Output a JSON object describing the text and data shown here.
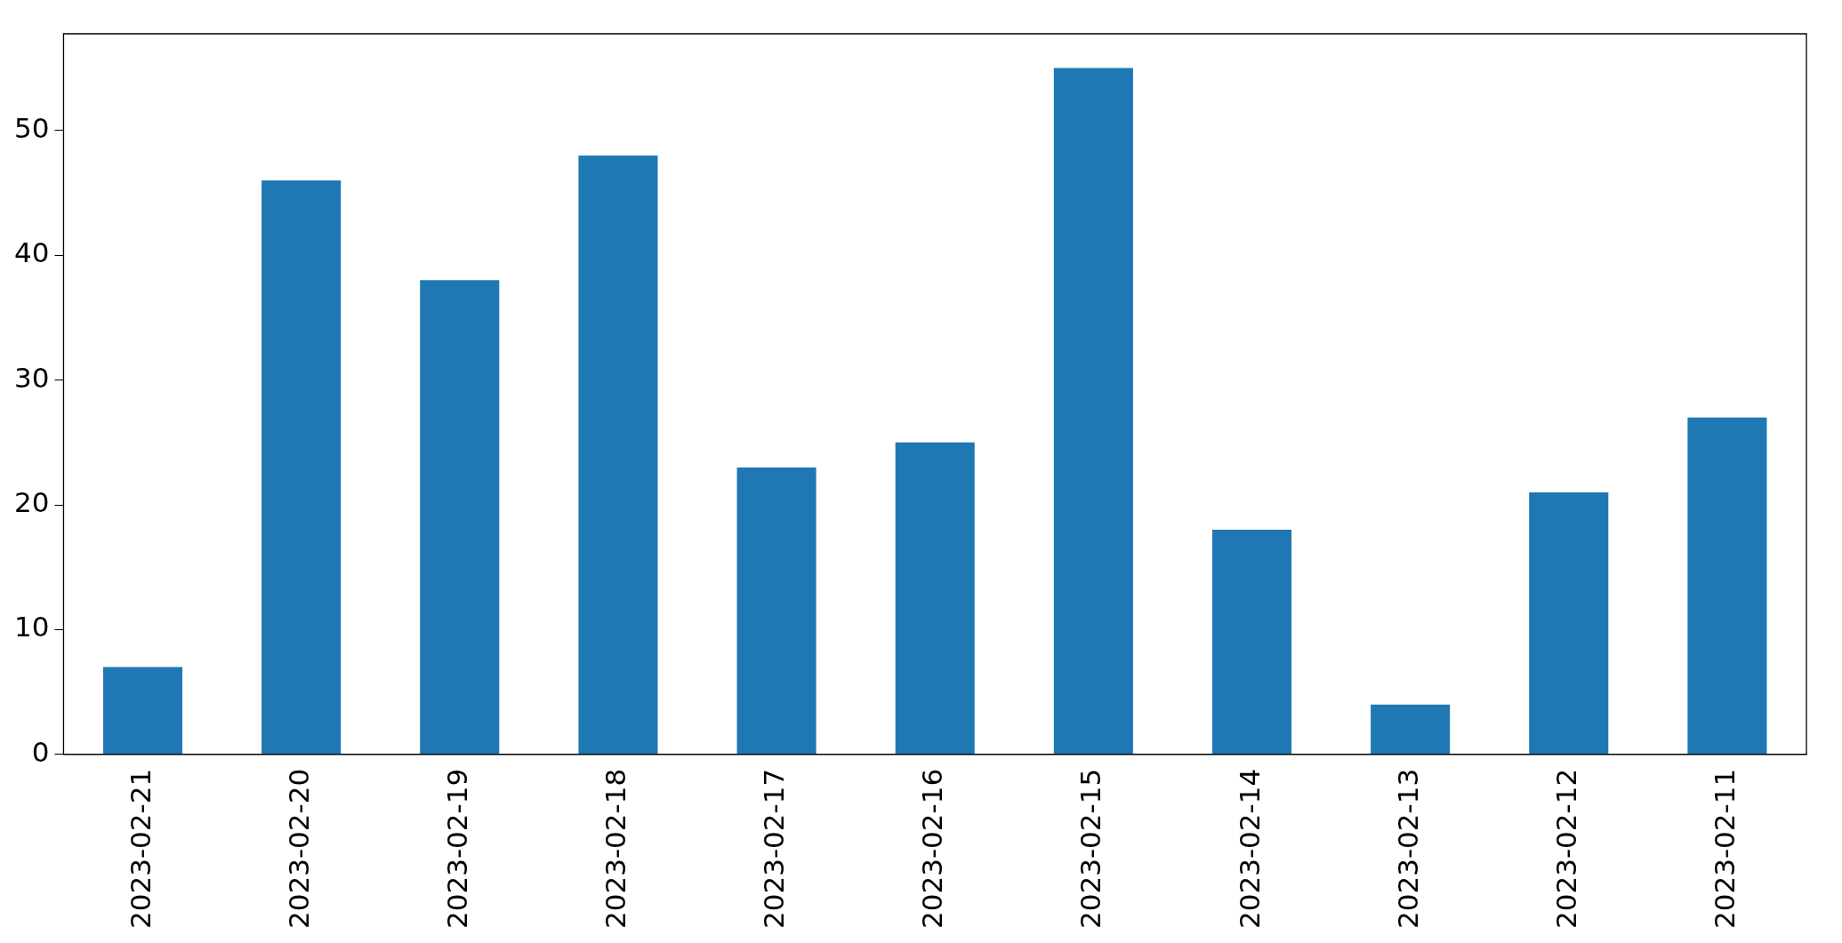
{
  "chart_data": {
    "type": "bar",
    "categories": [
      "2023-02-21",
      "2023-02-20",
      "2023-02-19",
      "2023-02-18",
      "2023-02-17",
      "2023-02-16",
      "2023-02-15",
      "2023-02-14",
      "2023-02-13",
      "2023-02-12",
      "2023-02-11"
    ],
    "values": [
      7,
      46,
      38,
      48,
      23,
      25,
      55,
      18,
      4,
      21,
      27
    ],
    "color": "#1f77b4",
    "ylim": [
      0,
      57.75
    ],
    "yticks": [
      0,
      10,
      20,
      30,
      40,
      50
    ],
    "grid": false,
    "legend": false
  }
}
